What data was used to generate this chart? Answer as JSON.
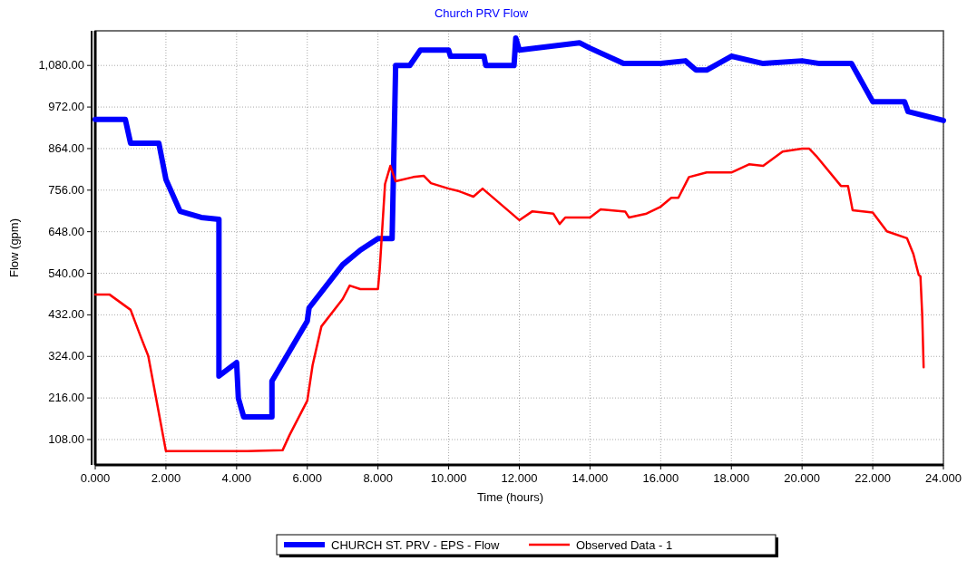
{
  "chart_data": {
    "type": "line",
    "title": "Church PRV Flow",
    "xlabel": "Time (hours)",
    "ylabel": "Flow (gpm)",
    "xlim": [
      0,
      24
    ],
    "ylim": [
      42,
      1170
    ],
    "xticks": [
      {
        "value": 0,
        "label": "0.000"
      },
      {
        "value": 2,
        "label": "2.000"
      },
      {
        "value": 4,
        "label": "4.000"
      },
      {
        "value": 6,
        "label": "6.000"
      },
      {
        "value": 8,
        "label": "8.000"
      },
      {
        "value": 10,
        "label": "10.000"
      },
      {
        "value": 12,
        "label": "12.000"
      },
      {
        "value": 14,
        "label": "14.000"
      },
      {
        "value": 16,
        "label": "16.000"
      },
      {
        "value": 18,
        "label": "18.000"
      },
      {
        "value": 20,
        "label": "20.000"
      },
      {
        "value": 22,
        "label": "22.000"
      },
      {
        "value": 24,
        "label": "24.000"
      }
    ],
    "yticks": [
      {
        "value": 108,
        "label": "108.00"
      },
      {
        "value": 216,
        "label": "216.00"
      },
      {
        "value": 324,
        "label": "324.00"
      },
      {
        "value": 432,
        "label": "432.00"
      },
      {
        "value": 540,
        "label": "540.00"
      },
      {
        "value": 648,
        "label": "648.00"
      },
      {
        "value": 756,
        "label": "756.00"
      },
      {
        "value": 864,
        "label": "864.00"
      },
      {
        "value": 972,
        "label": "972.00"
      },
      {
        "value": 1080,
        "label": "1,080.00"
      }
    ],
    "grid": true,
    "legend": "bottom",
    "marker": "none",
    "series": [
      {
        "name": "CHURCH ST. PRV - EPS - Flow",
        "color": "#0000ff",
        "x": [
          0,
          0.85,
          1.0,
          1.8,
          2.0,
          2.4,
          3.0,
          3.5,
          3.5,
          4.0,
          4.05,
          4.2,
          5.0,
          5.0,
          6.0,
          6.05,
          7.0,
          7.5,
          8.0,
          8.4,
          8.45,
          8.5,
          8.9,
          9.2,
          10.0,
          10.05,
          11.0,
          11.05,
          11.85,
          11.9,
          12.0,
          13.7,
          14.0,
          14.95,
          16.0,
          16.7,
          17.0,
          17.3,
          18.0,
          18.9,
          20.0,
          20.5,
          21.4,
          22.0,
          22.9,
          23.0,
          24.0
        ],
        "values": [
          940,
          940,
          878,
          878,
          784,
          701,
          685,
          680,
          273,
          308,
          215,
          167,
          167,
          260,
          416,
          450,
          562,
          600,
          630,
          630,
          850,
          1080,
          1080,
          1120,
          1120,
          1104,
          1104,
          1080,
          1080,
          1151,
          1120,
          1139,
          1125,
          1085,
          1085,
          1092,
          1068,
          1068,
          1104,
          1085,
          1092,
          1085,
          1085,
          986,
          986,
          960,
          937
        ]
      },
      {
        "name": "Observed Data - 1",
        "color": "#ff0000",
        "x": [
          0,
          0.4,
          1.0,
          1.3,
          1.5,
          2.0,
          4.3,
          5.3,
          5.5,
          6.0,
          6.15,
          6.4,
          7.0,
          7.2,
          7.5,
          8.0,
          8.05,
          8.2,
          8.35,
          8.5,
          9.0,
          9.3,
          9.5,
          10.0,
          10.3,
          10.7,
          10.96,
          12.0,
          12.37,
          12.96,
          13.14,
          13.3,
          14.0,
          14.3,
          15.0,
          15.1,
          15.6,
          16.0,
          16.3,
          16.5,
          16.8,
          17.3,
          18.0,
          18.5,
          18.9,
          19.45,
          20.0,
          20.2,
          20.4,
          21.1,
          21.3,
          21.43,
          22.0,
          22.4,
          22.97,
          23.15,
          23.3,
          23.35,
          23.4,
          23.44
        ],
        "values": [
          485,
          485,
          445,
          372,
          325,
          78,
          78,
          80,
          120,
          209,
          301,
          402,
          473,
          508,
          499,
          499,
          551,
          772,
          819,
          779,
          790,
          793,
          774,
          760,
          753,
          739,
          760,
          678,
          701,
          695,
          668,
          685,
          685,
          706,
          700,
          685,
          695,
          713,
          736,
          736,
          790,
          802,
          802,
          823,
          819,
          856,
          864,
          864,
          845,
          767,
          767,
          704,
          698,
          649,
          631,
          590,
          536,
          532,
          433,
          296
        ]
      }
    ]
  }
}
